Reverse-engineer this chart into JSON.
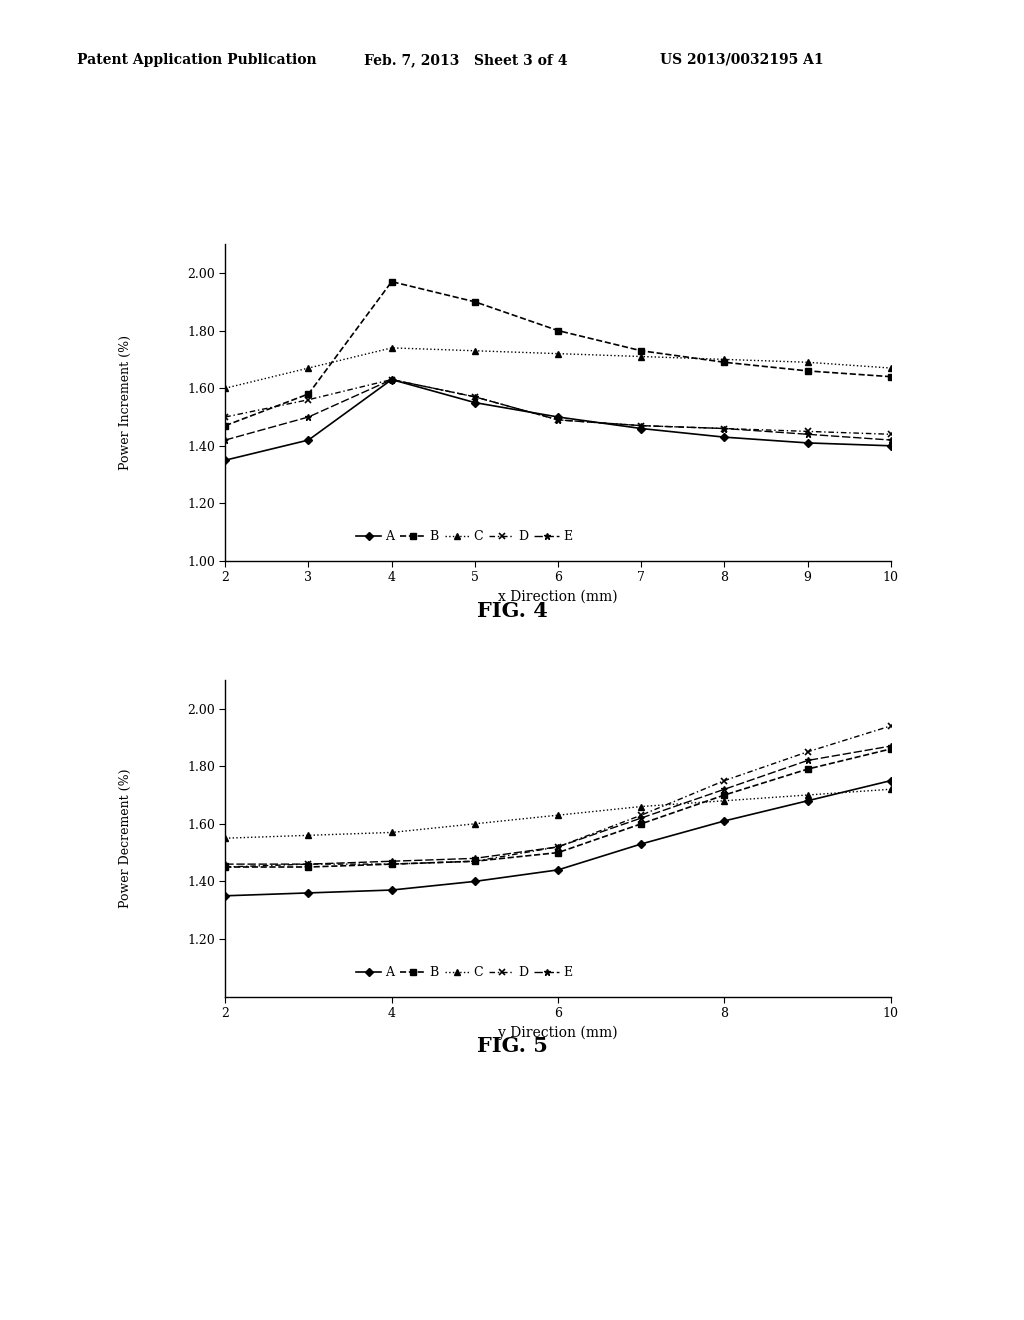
{
  "header_left": "Patent Application Publication",
  "header_mid": "Feb. 7, 2013   Sheet 3 of 4",
  "header_right": "US 2013/0032195 A1",
  "fig4_title": "FIG. 4",
  "fig4_xlabel": "x Direction (mm)",
  "fig4_ylabel": "Power Increment (%)",
  "fig4_xlim": [
    2,
    10
  ],
  "fig4_ylim": [
    1.0,
    2.1
  ],
  "fig4_yticks": [
    1.0,
    1.2,
    1.4,
    1.6,
    1.8,
    2.0
  ],
  "fig4_xticks": [
    2,
    3,
    4,
    5,
    6,
    7,
    8,
    9,
    10
  ],
  "fig4_A_x": [
    2,
    3,
    4,
    5,
    6,
    7,
    8,
    9,
    10
  ],
  "fig4_A_y": [
    1.35,
    1.42,
    1.63,
    1.55,
    1.5,
    1.46,
    1.43,
    1.41,
    1.4
  ],
  "fig4_B_x": [
    2,
    3,
    4,
    5,
    6,
    7,
    8,
    9,
    10
  ],
  "fig4_B_y": [
    1.47,
    1.58,
    1.97,
    1.9,
    1.8,
    1.73,
    1.69,
    1.66,
    1.64
  ],
  "fig4_C_x": [
    2,
    3,
    4,
    5,
    6,
    7,
    8,
    9,
    10
  ],
  "fig4_C_y": [
    1.6,
    1.67,
    1.74,
    1.73,
    1.72,
    1.71,
    1.7,
    1.69,
    1.67
  ],
  "fig4_D_x": [
    2,
    3,
    4,
    5,
    6,
    7,
    8,
    9,
    10
  ],
  "fig4_D_y": [
    1.5,
    1.56,
    1.63,
    1.57,
    1.49,
    1.47,
    1.46,
    1.45,
    1.44
  ],
  "fig4_E_x": [
    2,
    3,
    4,
    5,
    6,
    7,
    8,
    9,
    10
  ],
  "fig4_E_y": [
    1.42,
    1.5,
    1.63,
    1.57,
    1.49,
    1.47,
    1.46,
    1.44,
    1.42
  ],
  "fig5_title": "FIG. 5",
  "fig5_xlabel": "y Direction (mm)",
  "fig5_ylabel": "Power Decrement (%)",
  "fig5_xlim": [
    2,
    10
  ],
  "fig5_ylim": [
    1.0,
    2.1
  ],
  "fig5_yticks": [
    1.2,
    1.4,
    1.6,
    1.8,
    2.0
  ],
  "fig5_xticks": [
    2,
    4,
    6,
    8,
    10
  ],
  "fig5_A_x": [
    2,
    3,
    4,
    5,
    6,
    7,
    8,
    9,
    10
  ],
  "fig5_A_y": [
    1.35,
    1.36,
    1.37,
    1.4,
    1.44,
    1.53,
    1.61,
    1.68,
    1.75
  ],
  "fig5_B_x": [
    2,
    3,
    4,
    5,
    6,
    7,
    8,
    9,
    10
  ],
  "fig5_B_y": [
    1.45,
    1.45,
    1.46,
    1.47,
    1.5,
    1.6,
    1.7,
    1.79,
    1.86
  ],
  "fig5_C_x": [
    2,
    3,
    4,
    5,
    6,
    7,
    8,
    9,
    10
  ],
  "fig5_C_y": [
    1.55,
    1.56,
    1.57,
    1.6,
    1.63,
    1.66,
    1.68,
    1.7,
    1.72
  ],
  "fig5_D_x": [
    2,
    3,
    4,
    5,
    6,
    7,
    8,
    9,
    10
  ],
  "fig5_D_y": [
    1.45,
    1.46,
    1.46,
    1.47,
    1.52,
    1.63,
    1.75,
    1.85,
    1.94
  ],
  "fig5_E_x": [
    2,
    3,
    4,
    5,
    6,
    7,
    8,
    9,
    10
  ],
  "fig5_E_y": [
    1.46,
    1.46,
    1.47,
    1.48,
    1.52,
    1.62,
    1.72,
    1.82,
    1.87
  ],
  "line_color": "#000000",
  "bg_color": "#ffffff",
  "font_family": "DejaVu Serif"
}
